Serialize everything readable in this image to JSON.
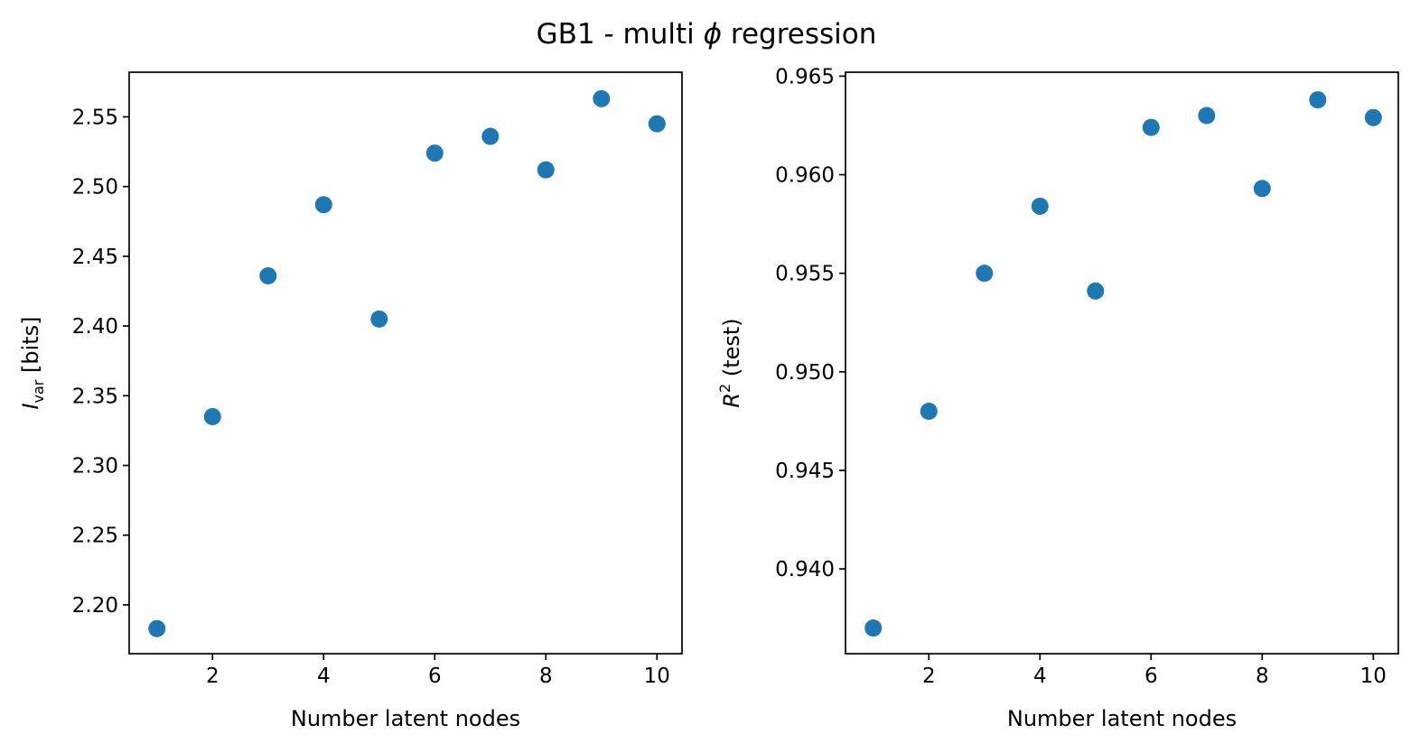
{
  "figure": {
    "title": "GB1 - multi ϕ regression",
    "title_parts": {
      "before": "GB1 - multi ",
      "symbol": "ϕ",
      "after": " regression"
    }
  },
  "chart_data": [
    {
      "type": "scatter",
      "title": "",
      "xlabel": "Number latent nodes",
      "ylabel": "I_var [bits]",
      "ylabel_parts": {
        "main": "I",
        "sub": "var",
        "rest": " [bits]"
      },
      "x": [
        1,
        2,
        3,
        4,
        5,
        6,
        7,
        8,
        9,
        10
      ],
      "y": [
        2.183,
        2.335,
        2.436,
        2.487,
        2.405,
        2.524,
        2.536,
        2.512,
        2.563,
        2.545
      ],
      "xlim": [
        0.5,
        10.45
      ],
      "ylim": [
        2.165,
        2.582
      ],
      "xticks": [
        2,
        4,
        6,
        8,
        10
      ],
      "yticks": [
        2.2,
        2.25,
        2.3,
        2.35,
        2.4,
        2.45,
        2.5,
        2.55
      ],
      "ytick_decimals": 2,
      "color": "#1f77b4",
      "grid": false,
      "legend": "none"
    },
    {
      "type": "scatter",
      "title": "",
      "xlabel": "Number latent nodes",
      "ylabel": "R^2 (test)",
      "ylabel_parts": {
        "main": "R",
        "sup": "2",
        "rest": " (test)"
      },
      "x": [
        1,
        2,
        3,
        4,
        5,
        6,
        7,
        8,
        9,
        10
      ],
      "y": [
        0.937,
        0.948,
        0.955,
        0.9584,
        0.9541,
        0.9624,
        0.963,
        0.9593,
        0.9638,
        0.9629
      ],
      "xlim": [
        0.5,
        10.45
      ],
      "ylim": [
        0.9357,
        0.9652
      ],
      "xticks": [
        2,
        4,
        6,
        8,
        10
      ],
      "yticks": [
        0.94,
        0.945,
        0.95,
        0.955,
        0.96,
        0.965
      ],
      "ytick_decimals": 3,
      "color": "#1f77b4",
      "grid": false,
      "legend": "none"
    }
  ]
}
